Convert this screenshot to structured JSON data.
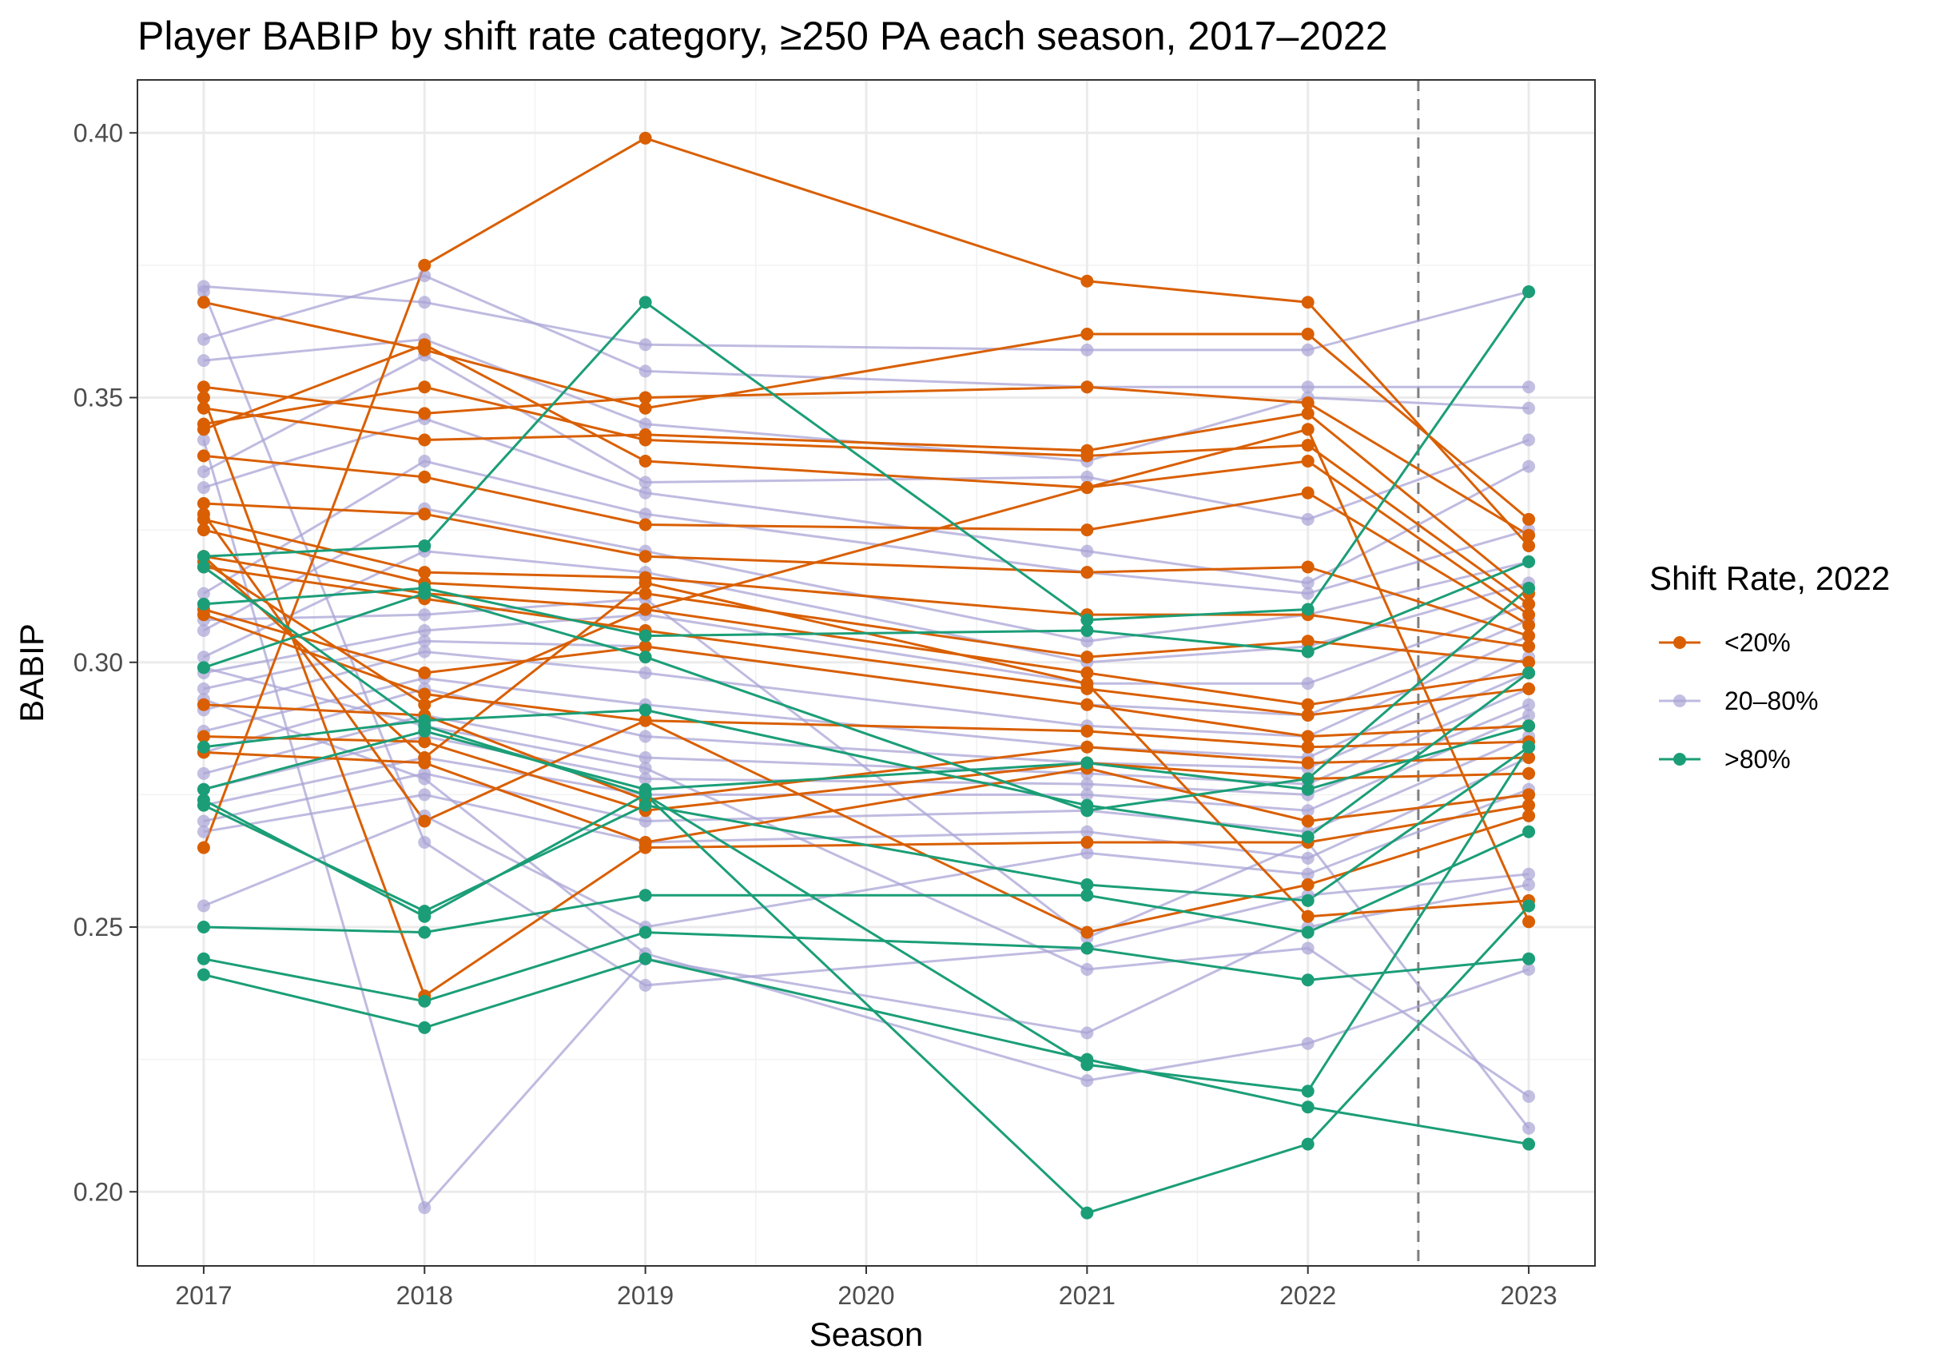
{
  "chart_data": {
    "type": "line",
    "title": "Player BABIP by shift rate category, ≥250 PA each season, 2017–2022",
    "xlabel": "Season",
    "ylabel": "BABIP",
    "x_ticks": [
      "2017",
      "2018",
      "2019",
      "2020",
      "2021",
      "2022",
      "2023"
    ],
    "y_ticks": [
      "0.20",
      "0.25",
      "0.30",
      "0.35",
      "0.40"
    ],
    "xlim": [
      2016.7,
      2023.3
    ],
    "ylim": [
      0.186,
      0.41
    ],
    "grid": true,
    "reference_line": {
      "x": 2022.5,
      "style": "dashed"
    },
    "legend": {
      "title": "Shift Rate, 2022",
      "position": "right",
      "entries": [
        {
          "label": "<20%",
          "color": "#D95F02"
        },
        {
          "label": "20–80%",
          "color": "#A9A4D6"
        },
        {
          "label": ">80%",
          "color": "#1B9E77"
        }
      ]
    },
    "series": [
      {
        "group": "20–80%",
        "x": [
          2017,
          2018,
          2019,
          2021,
          2022,
          2023
        ],
        "y": [
          0.371,
          0.368,
          0.36,
          0.359,
          0.359,
          0.37
        ]
      },
      {
        "group": "20–80%",
        "x": [
          2017,
          2018,
          2019,
          2021,
          2022,
          2023
        ],
        "y": [
          0.361,
          0.373,
          0.355,
          0.352,
          0.352,
          0.352
        ]
      },
      {
        "group": "20–80%",
        "x": [
          2017,
          2018,
          2019,
          2021,
          2022,
          2023
        ],
        "y": [
          0.357,
          0.361,
          0.345,
          0.338,
          0.35,
          0.348
        ]
      },
      {
        "group": "20–80%",
        "x": [
          2017,
          2018,
          2019,
          2021,
          2022,
          2023
        ],
        "y": [
          0.336,
          0.358,
          0.334,
          0.335,
          0.327,
          0.342
        ]
      },
      {
        "group": "20–80%",
        "x": [
          2017,
          2018,
          2019,
          2021,
          2022,
          2023
        ],
        "y": [
          0.333,
          0.346,
          0.332,
          0.321,
          0.315,
          0.337
        ]
      },
      {
        "group": "20–80%",
        "x": [
          2017,
          2018,
          2019,
          2021,
          2022,
          2023
        ],
        "y": [
          0.313,
          0.338,
          0.328,
          0.317,
          0.313,
          0.325
        ]
      },
      {
        "group": "20–80%",
        "x": [
          2017,
          2018,
          2019,
          2021,
          2022,
          2023
        ],
        "y": [
          0.306,
          0.329,
          0.321,
          0.304,
          0.309,
          0.319
        ]
      },
      {
        "group": "20–80%",
        "x": [
          2017,
          2018,
          2019,
          2021,
          2022,
          2023
        ],
        "y": [
          0.301,
          0.321,
          0.317,
          0.3,
          0.303,
          0.315
        ]
      },
      {
        "group": "20–80%",
        "x": [
          2017,
          2018,
          2019,
          2021,
          2022,
          2023
        ],
        "y": [
          0.298,
          0.306,
          0.309,
          0.296,
          0.296,
          0.311
        ]
      },
      {
        "group": "20–80%",
        "x": [
          2017,
          2018,
          2019,
          2021,
          2022,
          2023
        ],
        "y": [
          0.295,
          0.304,
          0.303,
          0.292,
          0.29,
          0.308
        ]
      },
      {
        "group": "20–80%",
        "x": [
          2017,
          2018,
          2019,
          2021,
          2022,
          2023
        ],
        "y": [
          0.291,
          0.302,
          0.298,
          0.288,
          0.286,
          0.305
        ]
      },
      {
        "group": "20–80%",
        "x": [
          2017,
          2018,
          2019,
          2021,
          2022,
          2023
        ],
        "y": [
          0.287,
          0.297,
          0.292,
          0.284,
          0.282,
          0.301
        ]
      },
      {
        "group": "20–80%",
        "x": [
          2017,
          2018,
          2019,
          2021,
          2022,
          2023
        ],
        "y": [
          0.283,
          0.295,
          0.286,
          0.281,
          0.28,
          0.298
        ]
      },
      {
        "group": "20–80%",
        "x": [
          2017,
          2018,
          2019,
          2021,
          2022,
          2023
        ],
        "y": [
          0.279,
          0.29,
          0.282,
          0.279,
          0.277,
          0.295
        ]
      },
      {
        "group": "20–80%",
        "x": [
          2017,
          2018,
          2019,
          2021,
          2022,
          2023
        ],
        "y": [
          0.276,
          0.286,
          0.278,
          0.277,
          0.275,
          0.292
        ]
      },
      {
        "group": "20–80%",
        "x": [
          2017,
          2018,
          2019,
          2021,
          2022,
          2023
        ],
        "y": [
          0.273,
          0.282,
          0.275,
          0.275,
          0.272,
          0.29
        ]
      },
      {
        "group": "20–80%",
        "x": [
          2017,
          2018,
          2019,
          2021,
          2022,
          2023
        ],
        "y": [
          0.27,
          0.279,
          0.27,
          0.272,
          0.268,
          0.286
        ]
      },
      {
        "group": "20–80%",
        "x": [
          2017,
          2018,
          2019,
          2021,
          2022,
          2023
        ],
        "y": [
          0.268,
          0.275,
          0.266,
          0.268,
          0.263,
          0.282
        ]
      },
      {
        "group": "20–80%",
        "x": [
          2017,
          2018,
          2019,
          2021,
          2022,
          2023
        ],
        "y": [
          0.254,
          0.271,
          0.25,
          0.264,
          0.26,
          0.276
        ]
      },
      {
        "group": "20–80%",
        "x": [
          2017,
          2018,
          2019,
          2021,
          2022,
          2023
        ],
        "y": [
          0.37,
          0.266,
          0.239,
          0.246,
          0.256,
          0.26
        ]
      },
      {
        "group": "20–80%",
        "x": [
          2017,
          2018,
          2019,
          2021,
          2022,
          2023
        ],
        "y": [
          0.342,
          0.197,
          0.244,
          0.23,
          0.25,
          0.258
        ]
      },
      {
        "group": "20–80%",
        "x": [
          2017,
          2018,
          2019,
          2021,
          2022,
          2023
        ],
        "y": [
          0.293,
          0.278,
          0.245,
          0.221,
          0.228,
          0.242
        ]
      },
      {
        "group": "20–80%",
        "x": [
          2017,
          2018,
          2019,
          2021,
          2022,
          2023
        ],
        "y": [
          0.299,
          0.288,
          0.28,
          0.242,
          0.246,
          0.218
        ]
      },
      {
        "group": "20–80%",
        "x": [
          2017,
          2018,
          2019,
          2021,
          2022,
          2023
        ],
        "y": [
          0.308,
          0.309,
          0.312,
          0.248,
          0.266,
          0.212
        ]
      },
      {
        "group": "<20%",
        "x": [
          2017,
          2018,
          2019,
          2021,
          2022,
          2023
        ],
        "y": [
          0.265,
          0.375,
          0.399,
          0.372,
          0.368,
          0.322
        ]
      },
      {
        "group": "<20%",
        "x": [
          2017,
          2018,
          2019,
          2021,
          2022,
          2023
        ],
        "y": [
          0.368,
          0.359,
          0.348,
          0.362,
          0.362,
          0.327
        ]
      },
      {
        "group": "<20%",
        "x": [
          2017,
          2018,
          2019,
          2021,
          2022,
          2023
        ],
        "y": [
          0.352,
          0.347,
          0.35,
          0.352,
          0.349,
          0.324
        ]
      },
      {
        "group": "<20%",
        "x": [
          2017,
          2018,
          2019,
          2021,
          2022,
          2023
        ],
        "y": [
          0.348,
          0.342,
          0.343,
          0.34,
          0.347,
          0.313
        ]
      },
      {
        "group": "<20%",
        "x": [
          2017,
          2018,
          2019,
          2021,
          2022,
          2023
        ],
        "y": [
          0.345,
          0.352,
          0.342,
          0.339,
          0.341,
          0.311
        ]
      },
      {
        "group": "<20%",
        "x": [
          2017,
          2018,
          2019,
          2021,
          2022,
          2023
        ],
        "y": [
          0.344,
          0.36,
          0.338,
          0.333,
          0.338,
          0.309
        ]
      },
      {
        "group": "<20%",
        "x": [
          2017,
          2018,
          2019,
          2021,
          2022,
          2023
        ],
        "y": [
          0.339,
          0.335,
          0.326,
          0.325,
          0.332,
          0.307
        ]
      },
      {
        "group": "<20%",
        "x": [
          2017,
          2018,
          2019,
          2021,
          2022,
          2023
        ],
        "y": [
          0.33,
          0.328,
          0.32,
          0.317,
          0.318,
          0.305
        ]
      },
      {
        "group": "<20%",
        "x": [
          2017,
          2018,
          2019,
          2021,
          2022,
          2023
        ],
        "y": [
          0.327,
          0.317,
          0.316,
          0.309,
          0.309,
          0.303
        ]
      },
      {
        "group": "<20%",
        "x": [
          2017,
          2018,
          2019,
          2021,
          2022,
          2023
        ],
        "y": [
          0.325,
          0.315,
          0.313,
          0.301,
          0.304,
          0.3
        ]
      },
      {
        "group": "<20%",
        "x": [
          2017,
          2018,
          2019,
          2021,
          2022,
          2023
        ],
        "y": [
          0.32,
          0.313,
          0.31,
          0.298,
          0.292,
          0.298
        ]
      },
      {
        "group": "<20%",
        "x": [
          2017,
          2018,
          2019,
          2021,
          2022,
          2023
        ],
        "y": [
          0.318,
          0.312,
          0.306,
          0.295,
          0.29,
          0.295
        ]
      },
      {
        "group": "<20%",
        "x": [
          2017,
          2018,
          2019,
          2021,
          2022,
          2023
        ],
        "y": [
          0.31,
          0.298,
          0.303,
          0.292,
          0.286,
          0.288
        ]
      },
      {
        "group": "<20%",
        "x": [
          2017,
          2018,
          2019,
          2021,
          2022,
          2023
        ],
        "y": [
          0.309,
          0.294,
          0.289,
          0.287,
          0.284,
          0.285
        ]
      },
      {
        "group": "<20%",
        "x": [
          2017,
          2018,
          2019,
          2021,
          2022,
          2023
        ],
        "y": [
          0.292,
          0.29,
          0.274,
          0.284,
          0.281,
          0.282
        ]
      },
      {
        "group": "<20%",
        "x": [
          2017,
          2018,
          2019,
          2021,
          2022,
          2023
        ],
        "y": [
          0.286,
          0.285,
          0.272,
          0.281,
          0.278,
          0.279
        ]
      },
      {
        "group": "<20%",
        "x": [
          2017,
          2018,
          2019,
          2021,
          2022,
          2023
        ],
        "y": [
          0.283,
          0.281,
          0.266,
          0.28,
          0.27,
          0.275
        ]
      },
      {
        "group": "<20%",
        "x": [
          2017,
          2018,
          2019,
          2021,
          2022,
          2023
        ],
        "y": [
          0.35,
          0.237,
          0.265,
          0.266,
          0.266,
          0.273
        ]
      },
      {
        "group": "<20%",
        "x": [
          2017,
          2018,
          2019,
          2021,
          2022,
          2023
        ],
        "y": [
          0.328,
          0.27,
          0.289,
          0.249,
          0.258,
          0.271
        ]
      },
      {
        "group": "<20%",
        "x": [
          2017,
          2018,
          2019,
          2021,
          2022,
          2023
        ],
        "y": [
          0.32,
          0.282,
          0.315,
          0.296,
          0.252,
          0.255
        ]
      },
      {
        "group": "<20%",
        "x": [
          2017,
          2018,
          2019,
          2021,
          2022,
          2023
        ],
        "y": [
          0.319,
          0.292,
          0.31,
          0.333,
          0.344,
          0.251
        ]
      },
      {
        "group": ">80%",
        "x": [
          2017,
          2018,
          2019,
          2021,
          2022,
          2023
        ],
        "y": [
          0.32,
          0.322,
          0.368,
          0.308,
          0.31,
          0.37
        ]
      },
      {
        "group": ">80%",
        "x": [
          2017,
          2018,
          2019,
          2021,
          2022,
          2023
        ],
        "y": [
          0.311,
          0.314,
          0.305,
          0.306,
          0.302,
          0.319
        ]
      },
      {
        "group": ">80%",
        "x": [
          2017,
          2018,
          2019,
          2021,
          2022,
          2023
        ],
        "y": [
          0.299,
          0.313,
          0.301,
          0.272,
          0.278,
          0.314
        ]
      },
      {
        "group": ">80%",
        "x": [
          2017,
          2018,
          2019,
          2021,
          2022,
          2023
        ],
        "y": [
          0.284,
          0.289,
          0.291,
          0.273,
          0.267,
          0.298
        ]
      },
      {
        "group": ">80%",
        "x": [
          2017,
          2018,
          2019,
          2021,
          2022,
          2023
        ],
        "y": [
          0.276,
          0.287,
          0.276,
          0.281,
          0.276,
          0.288
        ]
      },
      {
        "group": ">80%",
        "x": [
          2017,
          2018,
          2019,
          2021,
          2022,
          2023
        ],
        "y": [
          0.273,
          0.253,
          0.273,
          0.258,
          0.255,
          0.284
        ]
      },
      {
        "group": ">80%",
        "x": [
          2017,
          2018,
          2019,
          2021,
          2022,
          2023
        ],
        "y": [
          0.25,
          0.249,
          0.256,
          0.256,
          0.249,
          0.268
        ]
      },
      {
        "group": ">80%",
        "x": [
          2017,
          2018,
          2019,
          2021,
          2022,
          2023
        ],
        "y": [
          0.244,
          0.236,
          0.249,
          0.246,
          0.24,
          0.244
        ]
      },
      {
        "group": ">80%",
        "x": [
          2017,
          2018,
          2019,
          2021,
          2022,
          2023
        ],
        "y": [
          0.241,
          0.231,
          0.244,
          0.225,
          0.216,
          0.209
        ]
      },
      {
        "group": ">80%",
        "x": [
          2017,
          2018,
          2019,
          2021,
          2022,
          2023
        ],
        "y": [
          0.274,
          0.252,
          0.275,
          0.196,
          0.209,
          0.254
        ]
      },
      {
        "group": ">80%",
        "x": [
          2017,
          2018,
          2019,
          2021,
          2022,
          2023
        ],
        "y": [
          0.318,
          0.288,
          0.275,
          0.224,
          0.219,
          0.284
        ]
      }
    ]
  }
}
